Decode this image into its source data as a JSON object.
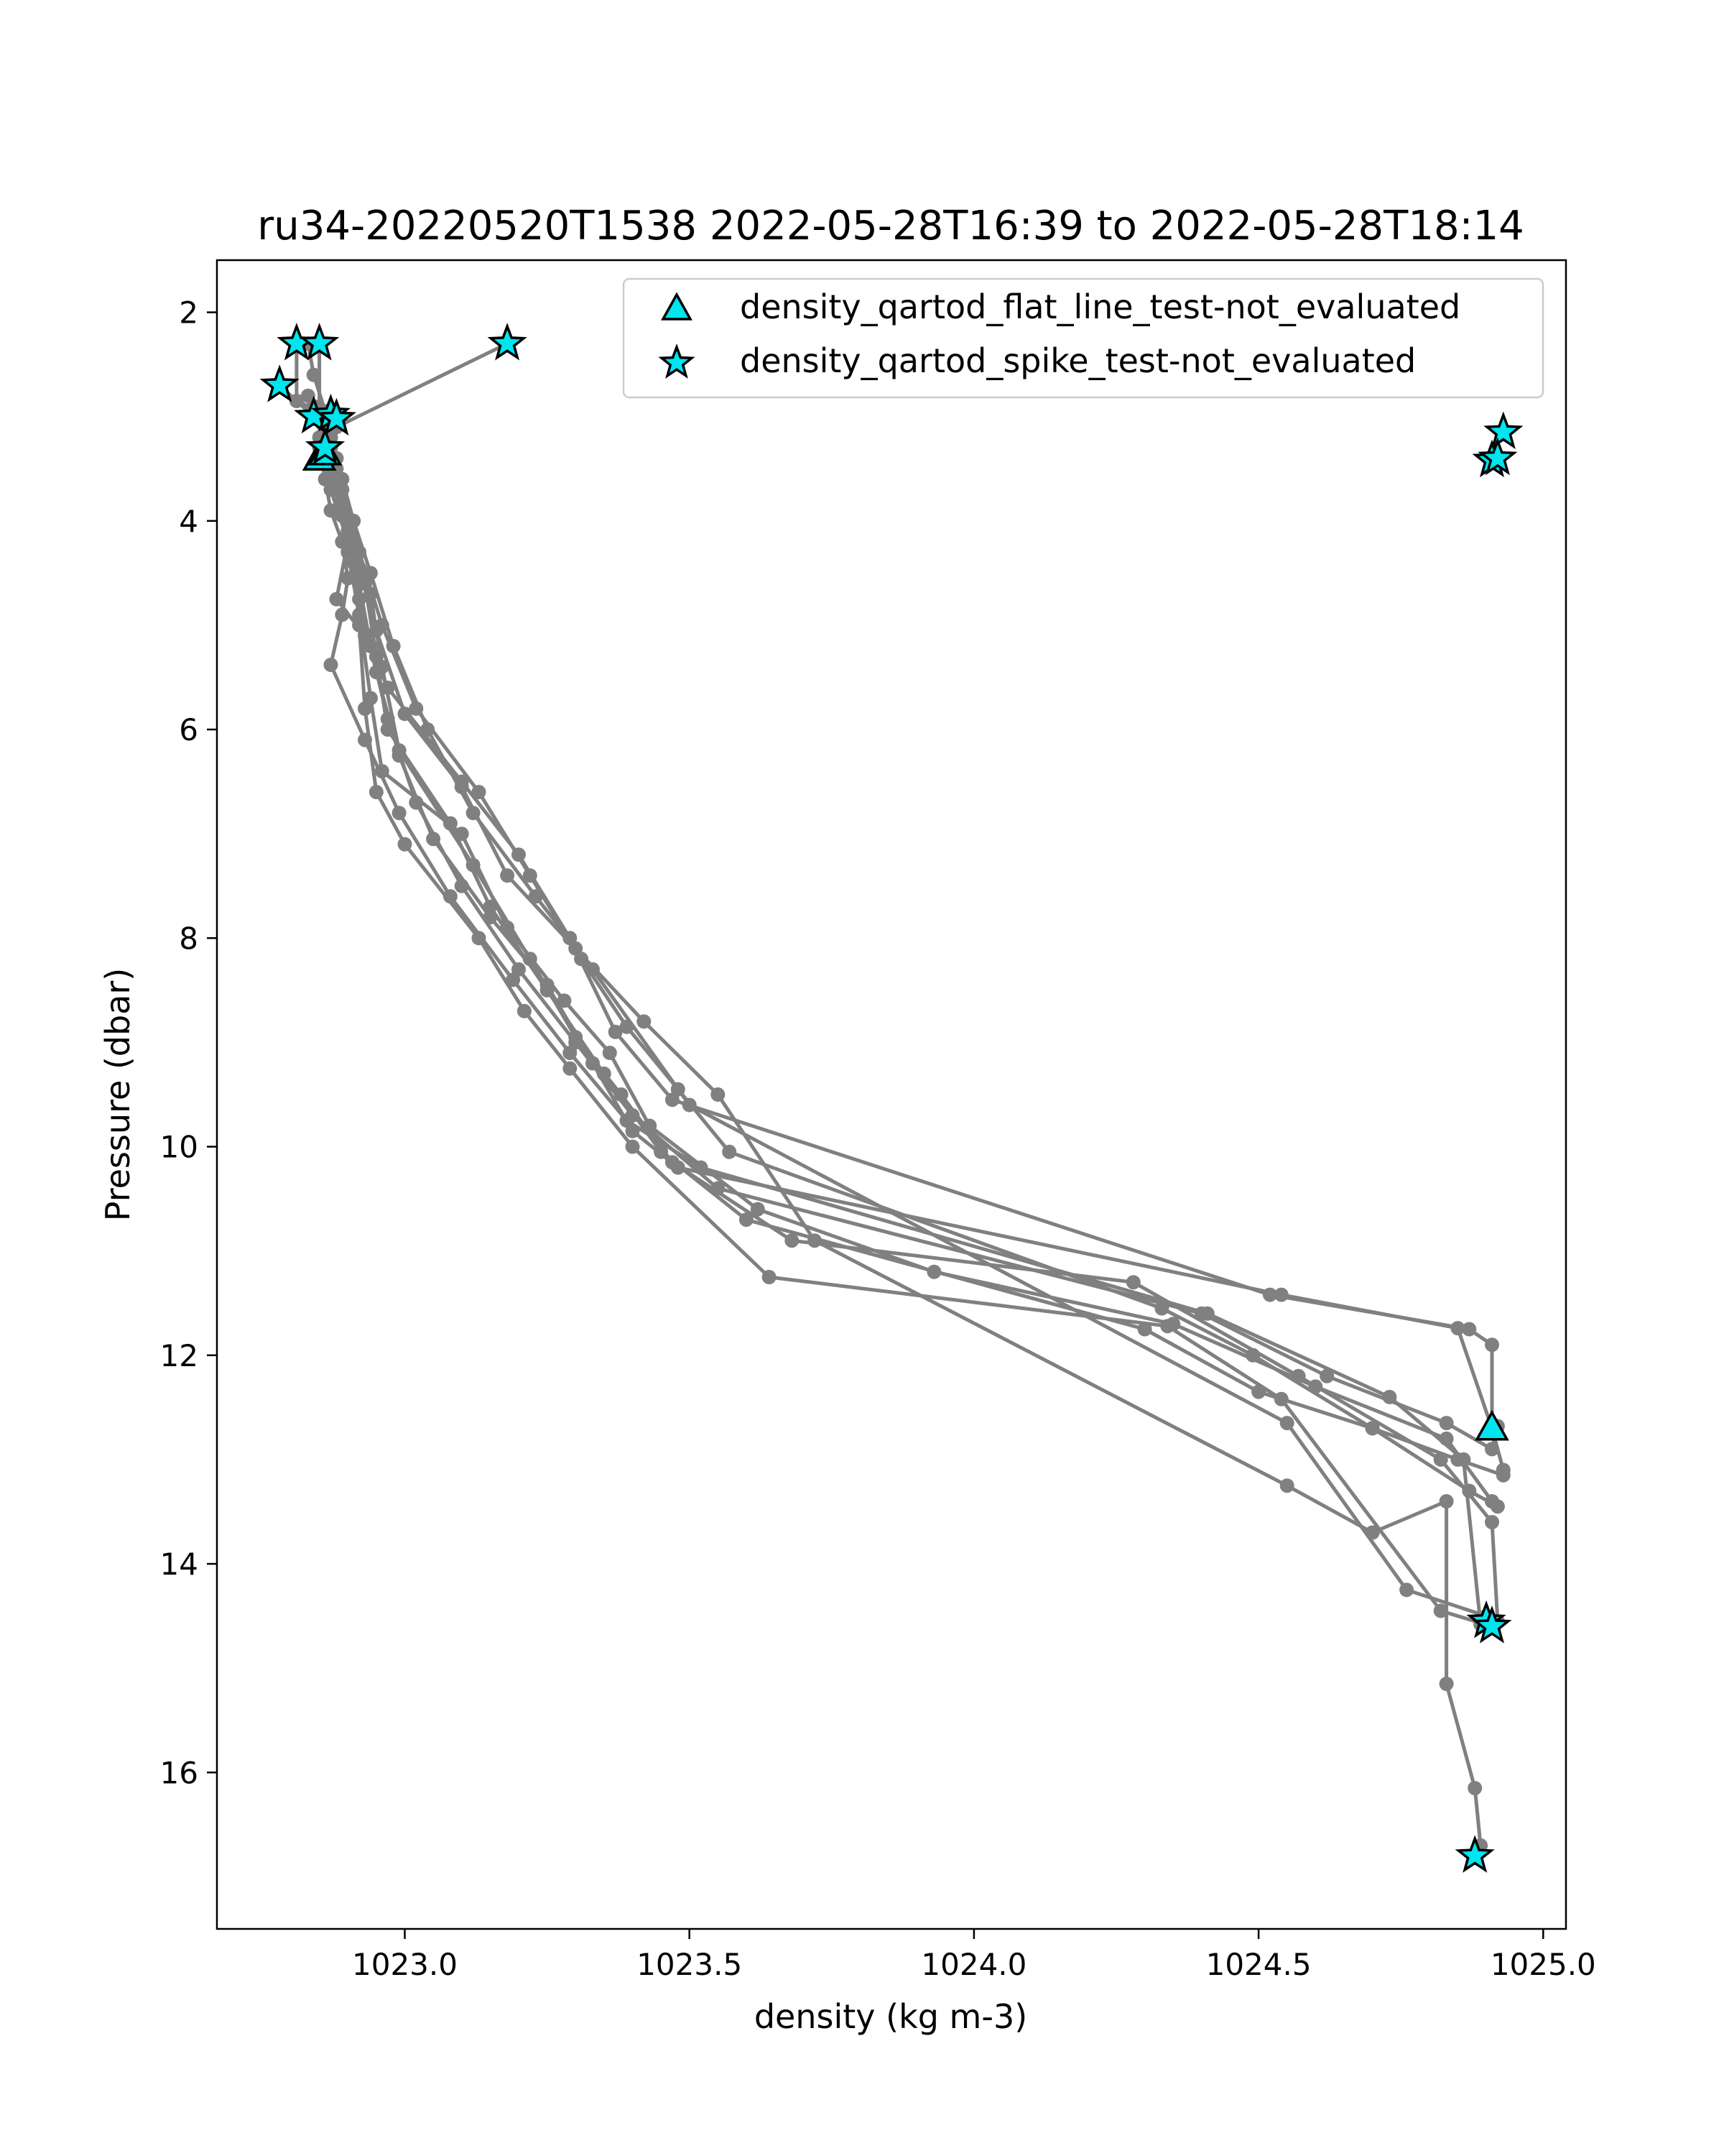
{
  "chart_data": {
    "type": "scatter",
    "title": "ru34-20220520T1538 2022-05-28T16:39 to 2022-05-28T18:14",
    "xlabel": "density (kg m-3)",
    "ylabel": "Pressure (dbar)",
    "xlim": [
      1022.67,
      1025.04
    ],
    "ylim": [
      17.5,
      1.5
    ],
    "y_inverted": true,
    "xticks": [
      1023.0,
      1023.5,
      1024.0,
      1024.5,
      1025.0
    ],
    "xtick_labels": [
      "1023.0",
      "1023.5",
      "1024.0",
      "1024.5",
      "1025.0"
    ],
    "yticks": [
      2,
      4,
      6,
      8,
      10,
      12,
      14,
      16
    ],
    "ytick_labels": [
      "2",
      "4",
      "6",
      "8",
      "10",
      "12",
      "14",
      "16"
    ],
    "grid": false,
    "legend_position": "top-right",
    "colors": {
      "profile_line": "#808080",
      "marker_fill": "#00e5ee",
      "marker_edge": "#000000"
    },
    "profiles": [
      {
        "x": [
          1022.86,
          1022.87,
          1022.88,
          1022.89,
          1022.9,
          1022.92,
          1022.94,
          1022.96,
          1023.1,
          1023.18,
          1023.28,
          1023.36,
          1023.43,
          1023.62,
          1023.93,
          1024.35,
          1024.6,
          1024.83,
          1024.91
        ],
        "y": [
          3.05,
          3.3,
          3.6,
          3.95,
          4.3,
          4.9,
          5.7,
          6.4,
          7.0,
          7.9,
          8.6,
          9.1,
          9.8,
          10.6,
          11.2,
          11.7,
          12.3,
          12.8,
          13.4
        ]
      },
      {
        "x": [
          1022.85,
          1022.86,
          1022.87,
          1022.89,
          1022.91,
          1022.94,
          1022.96,
          1022.99,
          1023.12,
          1023.22,
          1023.3,
          1023.38,
          1023.47,
          1023.68,
          1024.28,
          1024.57,
          1024.82,
          1024.91,
          1024.92
        ],
        "y": [
          2.95,
          3.2,
          3.5,
          3.85,
          4.2,
          4.7,
          5.4,
          6.2,
          7.3,
          8.2,
          8.95,
          9.5,
          10.15,
          10.9,
          11.3,
          12.2,
          13.0,
          13.6,
          14.55
        ]
      },
      {
        "x": [
          1022.84,
          1022.86,
          1022.87,
          1022.89,
          1022.9,
          1022.93,
          1022.95,
          1022.97,
          1023.08,
          1023.15,
          1023.25,
          1023.35,
          1023.45,
          1023.6,
          1024.3,
          1024.5,
          1024.7,
          1024.85,
          1024.93
        ],
        "y": [
          2.9,
          3.15,
          3.45,
          3.8,
          4.1,
          4.6,
          5.3,
          6.0,
          6.9,
          7.7,
          8.5,
          9.3,
          10.05,
          10.7,
          11.75,
          12.35,
          12.7,
          13.0,
          13.15
        ]
      },
      {
        "x": [
          1022.87,
          1022.88,
          1022.89,
          1022.9,
          1022.91,
          1022.92,
          1022.93,
          1022.95,
          1023.0,
          1023.13,
          1023.21,
          1023.29,
          1023.4,
          1023.64,
          1024.34,
          1024.54,
          1024.82,
          1024.91
        ],
        "y": [
          3.1,
          3.4,
          3.7,
          4.0,
          4.4,
          5.0,
          5.8,
          6.6,
          7.1,
          8.0,
          8.7,
          9.25,
          10.0,
          11.25,
          11.72,
          12.42,
          14.45,
          14.6
        ]
      },
      {
        "x": [
          1022.86,
          1022.88,
          1022.9,
          1022.92,
          1022.94,
          1022.97,
          1023.02,
          1023.1,
          1023.2,
          1023.3,
          1023.4,
          1023.55,
          1024.4,
          1024.62,
          1024.83,
          1024.91,
          1024.92
        ],
        "y": [
          3.0,
          3.5,
          4.1,
          4.6,
          5.2,
          5.9,
          6.7,
          7.5,
          8.3,
          9.0,
          9.7,
          10.4,
          11.6,
          12.2,
          12.65,
          12.9,
          12.68
        ]
      },
      {
        "x": [
          1022.85,
          1022.88,
          1022.9,
          1022.92,
          1022.95,
          1022.99,
          1023.05,
          1023.15,
          1023.25,
          1023.33,
          1023.4,
          1023.48,
          1024.54,
          1024.85,
          1024.91,
          1024.93
        ],
        "y": [
          3.2,
          3.65,
          4.15,
          4.75,
          5.45,
          6.25,
          7.05,
          7.8,
          8.45,
          9.2,
          9.85,
          10.2,
          11.42,
          11.74,
          12.7,
          13.1
        ]
      },
      {
        "x": [
          1022.83,
          1022.85,
          1022.87,
          1022.89,
          1022.91,
          1022.94,
          1022.98,
          1023.04,
          1023.12,
          1023.23,
          1023.33,
          1023.5,
          1024.55,
          1024.76,
          1024.9,
          1024.91
        ],
        "y": [
          2.8,
          3.0,
          3.2,
          3.6,
          4.0,
          4.5,
          5.2,
          6.0,
          6.8,
          7.6,
          8.3,
          9.6,
          12.65,
          14.25,
          14.5,
          14.6
        ]
      },
      {
        "x": [
          1022.86,
          1022.87,
          1022.89,
          1022.92,
          1022.95,
          1023.0,
          1023.1,
          1023.18,
          1023.3,
          1023.42,
          1023.55,
          1023.72,
          1024.55,
          1024.7,
          1024.83,
          1024.83,
          1024.88,
          1024.89,
          1024.88
        ],
        "y": [
          3.25,
          3.55,
          3.95,
          4.45,
          5.05,
          5.85,
          6.55,
          7.4,
          8.1,
          8.8,
          9.5,
          10.9,
          13.25,
          13.7,
          13.4,
          15.15,
          16.15,
          16.7,
          16.8
        ]
      },
      {
        "x": [
          1022.83,
          1022.84,
          1022.86,
          1022.87,
          1022.88,
          1022.87,
          1022.9,
          1022.88,
          1022.93,
          1022.97,
          1023.1,
          1023.2,
          1023.29,
          1023.37,
          1023.47,
          1024.52,
          1024.87,
          1024.91,
          1024.91
        ],
        "y": [
          2.3,
          2.6,
          2.95,
          3.2,
          3.4,
          3.7,
          4.2,
          4.75,
          5.1,
          5.6,
          6.5,
          7.2,
          8.0,
          8.9,
          9.55,
          11.42,
          11.75,
          11.9,
          12.68
        ]
      },
      {
        "x": [
          1022.86,
          1022.85,
          1022.86,
          1022.87,
          1022.89,
          1022.9,
          1022.89,
          1022.87,
          1022.93,
          1022.99,
          1023.08,
          1023.19,
          1023.29,
          1023.39,
          1023.52,
          1024.41,
          1024.73,
          1024.86,
          1024.89
        ],
        "y": [
          2.95,
          3.3,
          3.6,
          3.9,
          4.2,
          4.55,
          4.9,
          5.38,
          6.1,
          6.8,
          7.6,
          8.4,
          9.1,
          9.75,
          10.2,
          11.6,
          12.4,
          13.0,
          14.58
        ]
      },
      {
        "x": [
          1022.78,
          1022.81,
          1022.84,
          1022.86,
          1022.89,
          1022.92,
          1022.96,
          1023.02,
          1023.13,
          1023.22,
          1023.31,
          1023.39,
          1023.48,
          1023.57,
          1024.33,
          1024.49,
          1024.7,
          1024.87,
          1024.92
        ],
        "y": [
          2.7,
          2.85,
          3.0,
          3.25,
          3.7,
          4.3,
          5.0,
          5.8,
          6.6,
          7.4,
          8.2,
          8.85,
          9.45,
          10.05,
          11.55,
          12.0,
          12.7,
          13.3,
          13.45
        ]
      },
      {
        "x": [
          1022.81,
          1022.81,
          1022.85,
          1022.85
        ],
        "y": [
          2.3,
          2.85,
          2.95,
          2.3
        ]
      },
      {
        "x": [
          1023.18,
          1022.88
        ],
        "y": [
          2.3,
          3.1
        ]
      }
    ],
    "series": [
      {
        "name": "density_qartod_flat_line_test-not_evaluated",
        "marker": "triangle",
        "x": [
          1022.85,
          1022.86,
          1024.91
        ],
        "y": [
          3.4,
          3.35,
          12.7
        ]
      },
      {
        "name": "density_qartod_spike_test-not_evaluated",
        "marker": "star",
        "x": [
          1022.81,
          1022.85,
          1023.18,
          1022.78,
          1022.84,
          1022.87,
          1022.88,
          1022.86,
          1024.93,
          1024.91,
          1024.92,
          1024.9,
          1024.91,
          1024.88
        ],
        "y": [
          2.3,
          2.3,
          2.3,
          2.7,
          3.0,
          2.98,
          3.02,
          3.3,
          3.15,
          3.42,
          3.4,
          14.55,
          14.6,
          16.8
        ]
      }
    ]
  }
}
